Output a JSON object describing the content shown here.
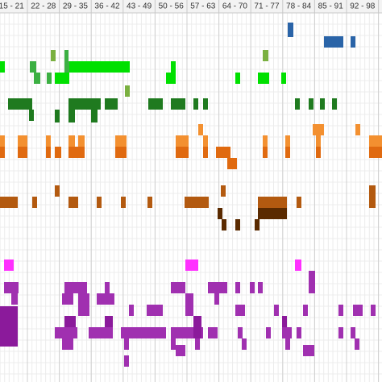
{
  "header": {
    "columns": [
      "15 - 21",
      "22 - 28",
      "29 - 35",
      "36 - 42",
      "43 - 49",
      "50 - 56",
      "57 - 63",
      "64 - 70",
      "71 - 77",
      "78 - 84",
      "85 - 91",
      "92 - 98"
    ]
  }
}
